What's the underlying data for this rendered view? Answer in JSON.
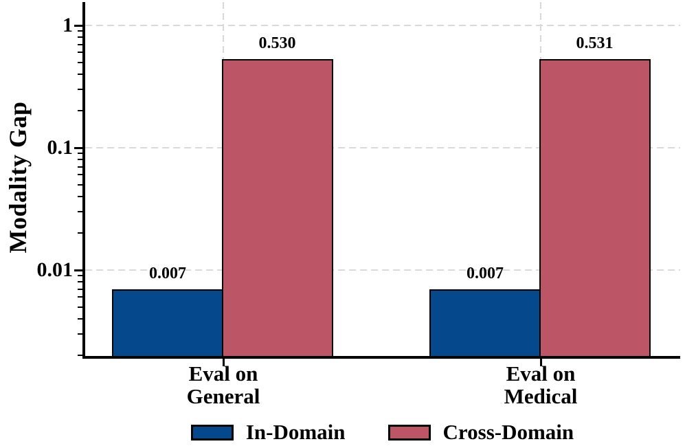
{
  "chart_data": {
    "type": "bar",
    "title": "",
    "xlabel": "",
    "ylabel": "Modality Gap",
    "yscale": "log",
    "ylim": [
      0.0019,
      1.5
    ],
    "grid": "both, dashed",
    "legend_position": "bottom-center",
    "categories": [
      "Eval on\nGeneral",
      "Eval on\nMedical"
    ],
    "series": [
      {
        "name": "In-Domain",
        "color": "#05498c",
        "values": [
          0.007,
          0.007
        ],
        "value_labels": [
          "0.007",
          "0.007"
        ]
      },
      {
        "name": "Cross-Domain",
        "color": "#bc5566",
        "values": [
          0.53,
          0.531
        ],
        "value_labels": [
          "0.530",
          "0.531"
        ]
      }
    ],
    "y_major_ticks": [
      {
        "value": 1,
        "label": "1"
      },
      {
        "value": 0.1,
        "label": "0.1"
      },
      {
        "value": 0.01,
        "label": "0.01"
      }
    ]
  },
  "style": {
    "background": "#ffffff",
    "bar_edge_color": "#000000",
    "grid_color": "#d9d9d9",
    "axis_color": "#000000",
    "text_color": "#000000"
  }
}
